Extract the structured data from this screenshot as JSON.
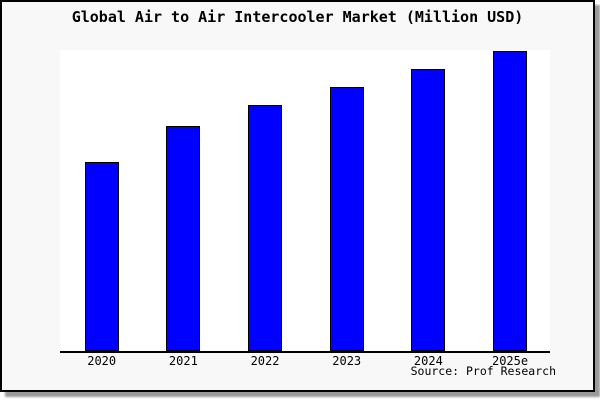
{
  "chart_data": {
    "type": "bar",
    "title": "Global Air to Air Intercooler Market (Million USD)",
    "categories": [
      "2020",
      "2021",
      "2022",
      "2023",
      "2024",
      "2025e"
    ],
    "values_relative": [
      63,
      75,
      82,
      88,
      94,
      100
    ],
    "values_note": "No y-axis ticks or value labels are shown in the chart; values are relative bar heights normalized so that 2025e = 100.",
    "xlabel": "",
    "ylabel": "",
    "grid": false,
    "legend": false,
    "source": "Source: Prof Research",
    "colors": {
      "bar_fill": "#0000ff",
      "bar_border": "#000000",
      "axis": "#000000",
      "card_background": "#f8f8f8",
      "plot_background": "#ffffff",
      "card_border": "#000000",
      "shadow": "#9a9a9a",
      "page_background": "#ffffff",
      "text": "#000000"
    }
  }
}
